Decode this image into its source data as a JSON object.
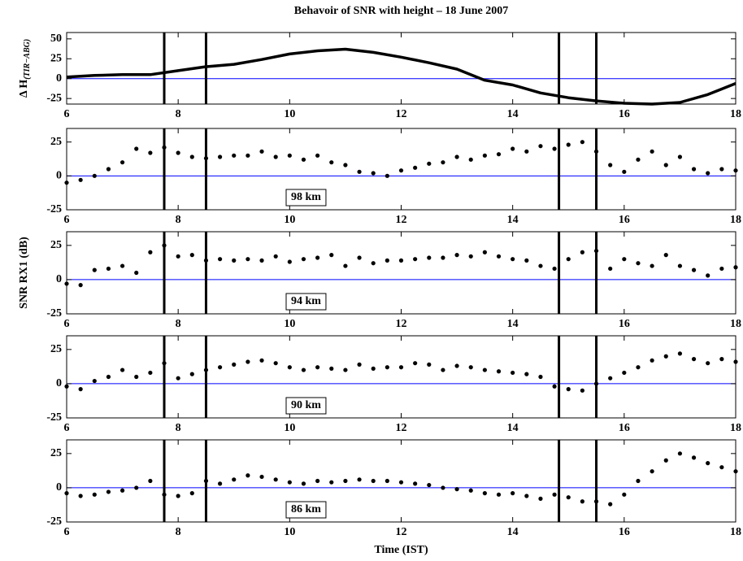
{
  "chart_data": [
    {
      "type": "line",
      "title": "Behavoir of SNR with height – 18 June 2007",
      "ylabel": "Δ H",
      "ylabel_sub": "(TIR−ABG)",
      "x": [
        6,
        6.5,
        7,
        7.5,
        8,
        8.5,
        9,
        9.5,
        10,
        10.5,
        11,
        11.5,
        12,
        12.5,
        13,
        13.5,
        14,
        14.5,
        15,
        15.5,
        16,
        16.5,
        17,
        17.5,
        18
      ],
      "values": [
        2,
        4,
        5,
        5,
        10,
        15,
        18,
        24,
        31,
        35,
        37,
        33,
        27,
        20,
        12,
        -2,
        -8,
        -18,
        -24,
        -28,
        -31,
        -32,
        -30,
        -20,
        -6
      ],
      "color": "#000000",
      "xlim": [
        6,
        18
      ],
      "xticks": [
        6,
        8,
        10,
        12,
        14,
        16,
        18
      ],
      "ylim": [
        -32,
        58
      ],
      "yticks": [
        -25,
        0,
        25,
        50
      ],
      "hline": 0,
      "hline_color": "#0000ff",
      "vlines": [
        7.75,
        8.5,
        14.83,
        15.5
      ]
    },
    {
      "type": "scatter",
      "annotation": "98 km",
      "x": [
        6,
        6.25,
        6.5,
        6.75,
        7,
        7.25,
        7.5,
        7.75,
        8,
        8.25,
        8.5,
        8.75,
        9,
        9.25,
        9.5,
        9.75,
        10,
        10.25,
        10.5,
        10.75,
        11,
        11.25,
        11.5,
        11.75,
        12,
        12.25,
        12.5,
        12.75,
        13,
        13.25,
        13.5,
        13.75,
        14,
        14.25,
        14.5,
        14.75,
        15,
        15.25,
        15.5,
        15.75,
        16,
        16.25,
        16.5,
        16.75,
        17,
        17.25,
        17.5,
        17.75,
        18
      ],
      "values": [
        -5,
        -3,
        0,
        5,
        10,
        20,
        17,
        21,
        17,
        14,
        13,
        14,
        15,
        15,
        18,
        14,
        15,
        12,
        15,
        10,
        8,
        3,
        2,
        0,
        4,
        6,
        9,
        10,
        14,
        12,
        15,
        16,
        20,
        18,
        22,
        20,
        23,
        25,
        18,
        8,
        3,
        12,
        18,
        8,
        14,
        5,
        2,
        5,
        4
      ],
      "color": "#000000",
      "xlim": [
        6,
        18
      ],
      "xticks": [
        6,
        8,
        10,
        12,
        14,
        16,
        18
      ],
      "ylim": [
        -25,
        35
      ],
      "yticks": [
        -25,
        0,
        25
      ],
      "hline": 0,
      "hline_color": "#0000ff",
      "vlines": [
        7.75,
        8.5,
        14.83,
        15.5
      ]
    },
    {
      "type": "scatter",
      "annotation": "94 km",
      "ylabel": "SNR RX1 (dB)",
      "x": [
        6,
        6.25,
        6.5,
        6.75,
        7,
        7.25,
        7.5,
        7.75,
        8,
        8.25,
        8.5,
        8.75,
        9,
        9.25,
        9.5,
        9.75,
        10,
        10.25,
        10.5,
        10.75,
        11,
        11.25,
        11.5,
        11.75,
        12,
        12.25,
        12.5,
        12.75,
        13,
        13.25,
        13.5,
        13.75,
        14,
        14.25,
        14.5,
        14.75,
        15,
        15.25,
        15.5,
        15.75,
        16,
        16.25,
        16.5,
        16.75,
        17,
        17.25,
        17.5,
        17.75,
        18
      ],
      "values": [
        -3,
        -4,
        7,
        8,
        10,
        5,
        20,
        25,
        17,
        18,
        14,
        15,
        14,
        15,
        14,
        17,
        13,
        15,
        16,
        18,
        10,
        16,
        12,
        14,
        14,
        15,
        16,
        16,
        18,
        17,
        20,
        17,
        15,
        14,
        10,
        8,
        15,
        20,
        21,
        8,
        15,
        12,
        10,
        18,
        10,
        7,
        3,
        8,
        9
      ],
      "color": "#000000",
      "xlim": [
        6,
        18
      ],
      "xticks": [
        6,
        8,
        10,
        12,
        14,
        16,
        18
      ],
      "ylim": [
        -25,
        35
      ],
      "yticks": [
        -25,
        0,
        25
      ],
      "hline": 0,
      "hline_color": "#0000ff",
      "vlines": [
        7.75,
        8.5,
        14.83,
        15.5
      ]
    },
    {
      "type": "scatter",
      "annotation": "90 km",
      "x": [
        6,
        6.25,
        6.5,
        6.75,
        7,
        7.25,
        7.5,
        7.75,
        8,
        8.25,
        8.5,
        8.75,
        9,
        9.25,
        9.5,
        9.75,
        10,
        10.25,
        10.5,
        10.75,
        11,
        11.25,
        11.5,
        11.75,
        12,
        12.25,
        12.5,
        12.75,
        13,
        13.25,
        13.5,
        13.75,
        14,
        14.25,
        14.5,
        14.75,
        15,
        15.25,
        15.5,
        15.75,
        16,
        16.25,
        16.5,
        16.75,
        17,
        17.25,
        17.5,
        17.75,
        18
      ],
      "values": [
        -2,
        -4,
        2,
        5,
        10,
        5,
        8,
        15,
        4,
        7,
        10,
        12,
        14,
        16,
        17,
        15,
        12,
        10,
        12,
        11,
        10,
        14,
        11,
        12,
        12,
        15,
        14,
        10,
        13,
        12,
        10,
        9,
        8,
        7,
        5,
        -2,
        -4,
        -5,
        0,
        4,
        8,
        12,
        17,
        20,
        22,
        18,
        15,
        18,
        16
      ],
      "color": "#000000",
      "xlim": [
        6,
        18
      ],
      "xticks": [
        6,
        8,
        10,
        12,
        14,
        16,
        18
      ],
      "ylim": [
        -25,
        35
      ],
      "yticks": [
        -25,
        0,
        25
      ],
      "hline": 0,
      "hline_color": "#0000ff",
      "vlines": [
        7.75,
        8.5,
        14.83,
        15.5
      ]
    },
    {
      "type": "scatter",
      "annotation": "86 km",
      "xlabel": "Time (IST)",
      "x": [
        6,
        6.25,
        6.5,
        6.75,
        7,
        7.25,
        7.5,
        7.75,
        8,
        8.25,
        8.5,
        8.75,
        9,
        9.25,
        9.5,
        9.75,
        10,
        10.25,
        10.5,
        10.75,
        11,
        11.25,
        11.5,
        11.75,
        12,
        12.25,
        12.5,
        12.75,
        13,
        13.25,
        13.5,
        13.75,
        14,
        14.25,
        14.5,
        14.75,
        15,
        15.25,
        15.5,
        15.75,
        16,
        16.25,
        16.5,
        16.75,
        17,
        17.25,
        17.5,
        17.75,
        18
      ],
      "values": [
        -4,
        -6,
        -5,
        -3,
        -2,
        0,
        5,
        -5,
        -6,
        -4,
        5,
        3,
        6,
        9,
        8,
        6,
        4,
        3,
        5,
        4,
        5,
        6,
        5,
        5,
        4,
        3,
        2,
        0,
        -1,
        -2,
        -4,
        -5,
        -4,
        -6,
        -8,
        -5,
        -7,
        -10,
        -10,
        -12,
        -5,
        5,
        12,
        20,
        25,
        22,
        18,
        15,
        12
      ],
      "color": "#000000",
      "xlim": [
        6,
        18
      ],
      "xticks": [
        6,
        8,
        10,
        12,
        14,
        16,
        18
      ],
      "ylim": [
        -25,
        35
      ],
      "yticks": [
        -25,
        0,
        25
      ],
      "hline": 0,
      "hline_color": "#0000ff",
      "vlines": [
        7.75,
        8.5,
        14.83,
        15.5
      ]
    }
  ]
}
